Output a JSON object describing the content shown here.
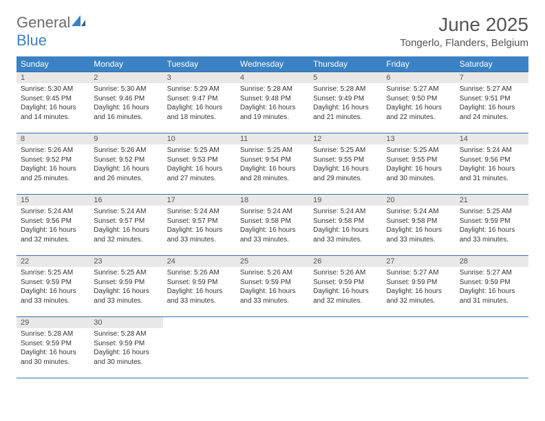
{
  "logo": {
    "general": "General",
    "blue": "Blue"
  },
  "header": {
    "title": "June 2025",
    "location": "Tongerlo, Flanders, Belgium"
  },
  "colors": {
    "header_bg": "#3b82c4",
    "header_text": "#ffffff",
    "row_border": "#3b6ea0",
    "daynum_bg": "#e8e8e8",
    "logo_gray": "#6b6b6b",
    "logo_blue": "#3b82c4"
  },
  "weekdays": [
    "Sunday",
    "Monday",
    "Tuesday",
    "Wednesday",
    "Thursday",
    "Friday",
    "Saturday"
  ],
  "days": [
    {
      "n": 1,
      "sunrise": "5:30 AM",
      "sunset": "9:45 PM",
      "daylight": "16 hours and 14 minutes."
    },
    {
      "n": 2,
      "sunrise": "5:30 AM",
      "sunset": "9:46 PM",
      "daylight": "16 hours and 16 minutes."
    },
    {
      "n": 3,
      "sunrise": "5:29 AM",
      "sunset": "9:47 PM",
      "daylight": "16 hours and 18 minutes."
    },
    {
      "n": 4,
      "sunrise": "5:28 AM",
      "sunset": "9:48 PM",
      "daylight": "16 hours and 19 minutes."
    },
    {
      "n": 5,
      "sunrise": "5:28 AM",
      "sunset": "9:49 PM",
      "daylight": "16 hours and 21 minutes."
    },
    {
      "n": 6,
      "sunrise": "5:27 AM",
      "sunset": "9:50 PM",
      "daylight": "16 hours and 22 minutes."
    },
    {
      "n": 7,
      "sunrise": "5:27 AM",
      "sunset": "9:51 PM",
      "daylight": "16 hours and 24 minutes."
    },
    {
      "n": 8,
      "sunrise": "5:26 AM",
      "sunset": "9:52 PM",
      "daylight": "16 hours and 25 minutes."
    },
    {
      "n": 9,
      "sunrise": "5:26 AM",
      "sunset": "9:52 PM",
      "daylight": "16 hours and 26 minutes."
    },
    {
      "n": 10,
      "sunrise": "5:25 AM",
      "sunset": "9:53 PM",
      "daylight": "16 hours and 27 minutes."
    },
    {
      "n": 11,
      "sunrise": "5:25 AM",
      "sunset": "9:54 PM",
      "daylight": "16 hours and 28 minutes."
    },
    {
      "n": 12,
      "sunrise": "5:25 AM",
      "sunset": "9:55 PM",
      "daylight": "16 hours and 29 minutes."
    },
    {
      "n": 13,
      "sunrise": "5:25 AM",
      "sunset": "9:55 PM",
      "daylight": "16 hours and 30 minutes."
    },
    {
      "n": 14,
      "sunrise": "5:24 AM",
      "sunset": "9:56 PM",
      "daylight": "16 hours and 31 minutes."
    },
    {
      "n": 15,
      "sunrise": "5:24 AM",
      "sunset": "9:56 PM",
      "daylight": "16 hours and 32 minutes."
    },
    {
      "n": 16,
      "sunrise": "5:24 AM",
      "sunset": "9:57 PM",
      "daylight": "16 hours and 32 minutes."
    },
    {
      "n": 17,
      "sunrise": "5:24 AM",
      "sunset": "9:57 PM",
      "daylight": "16 hours and 33 minutes."
    },
    {
      "n": 18,
      "sunrise": "5:24 AM",
      "sunset": "9:58 PM",
      "daylight": "16 hours and 33 minutes."
    },
    {
      "n": 19,
      "sunrise": "5:24 AM",
      "sunset": "9:58 PM",
      "daylight": "16 hours and 33 minutes."
    },
    {
      "n": 20,
      "sunrise": "5:24 AM",
      "sunset": "9:58 PM",
      "daylight": "16 hours and 33 minutes."
    },
    {
      "n": 21,
      "sunrise": "5:25 AM",
      "sunset": "9:59 PM",
      "daylight": "16 hours and 33 minutes."
    },
    {
      "n": 22,
      "sunrise": "5:25 AM",
      "sunset": "9:59 PM",
      "daylight": "16 hours and 33 minutes."
    },
    {
      "n": 23,
      "sunrise": "5:25 AM",
      "sunset": "9:59 PM",
      "daylight": "16 hours and 33 minutes."
    },
    {
      "n": 24,
      "sunrise": "5:26 AM",
      "sunset": "9:59 PM",
      "daylight": "16 hours and 33 minutes."
    },
    {
      "n": 25,
      "sunrise": "5:26 AM",
      "sunset": "9:59 PM",
      "daylight": "16 hours and 33 minutes."
    },
    {
      "n": 26,
      "sunrise": "5:26 AM",
      "sunset": "9:59 PM",
      "daylight": "16 hours and 32 minutes."
    },
    {
      "n": 27,
      "sunrise": "5:27 AM",
      "sunset": "9:59 PM",
      "daylight": "16 hours and 32 minutes."
    },
    {
      "n": 28,
      "sunrise": "5:27 AM",
      "sunset": "9:59 PM",
      "daylight": "16 hours and 31 minutes."
    },
    {
      "n": 29,
      "sunrise": "5:28 AM",
      "sunset": "9:59 PM",
      "daylight": "16 hours and 30 minutes."
    },
    {
      "n": 30,
      "sunrise": "5:28 AM",
      "sunset": "9:59 PM",
      "daylight": "16 hours and 30 minutes."
    }
  ],
  "labels": {
    "sunrise": "Sunrise:",
    "sunset": "Sunset:",
    "daylight": "Daylight:"
  },
  "layout": {
    "start_weekday": 0,
    "total_cells": 35
  }
}
